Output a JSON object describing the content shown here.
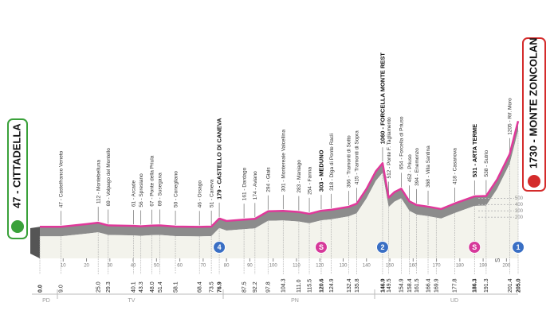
{
  "chart_data": {
    "type": "area",
    "x": [
      0,
      9,
      20,
      25,
      29.3,
      40.1,
      43.3,
      48,
      51.4,
      58.1,
      68.4,
      73.5,
      76.9,
      80,
      87.5,
      92.2,
      97.8,
      104.3,
      111,
      115.5,
      120.6,
      124.9,
      132.4,
      135.8,
      140,
      144,
      146.9,
      149.5,
      152,
      154.9,
      158.4,
      161.5,
      166.4,
      172,
      177.8,
      186.3,
      191.3,
      196,
      201.4,
      205
    ],
    "values": [
      47,
      47,
      90,
      112,
      69,
      61,
      56,
      67,
      69,
      50,
      46,
      51,
      179,
      140,
      161,
      174,
      294,
      301,
      283,
      254,
      303,
      318,
      366,
      415,
      650,
      930,
      1060,
      512,
      600,
      654,
      452,
      394,
      368,
      330,
      418,
      531,
      538,
      800,
      1205,
      1730
    ],
    "color": "#e0389a",
    "xlim": [
      0,
      205
    ],
    "ylim": [
      0,
      2150
    ],
    "xticks": [
      10,
      20,
      30,
      40,
      50,
      60,
      70,
      80,
      90,
      100,
      110,
      120,
      130,
      140,
      150,
      160,
      170,
      180,
      190,
      200
    ],
    "yticks": [
      200,
      300,
      400,
      500
    ]
  },
  "start": "47 - CITTADELLA",
  "finish": "1730 - MONTE ZONCOLAN",
  "waypoints": [
    {
      "km": {
        "value": 0,
        "label": "0.0"
      },
      "bold": true
    },
    {
      "km": {
        "value": 9,
        "label": "9.0"
      },
      "label": "47 - Castelfranco Veneto"
    },
    {
      "km": {
        "value": 25,
        "label": "25.0"
      },
      "label": "112 - Montebelluna"
    },
    {
      "km": 29.3,
      "label": "69 - Volpago del Montello"
    },
    {
      "km": 40.1,
      "label": "61 - Arcade"
    },
    {
      "km": 43.3,
      "label": "56 - Spresiano"
    },
    {
      "km": {
        "value": 48,
        "label": "48.0"
      },
      "label": "67 - Ponte della Priula"
    },
    {
      "km": 51.4,
      "label": "69 - Susegana"
    },
    {
      "km": 58.1,
      "label": "50 - Conegliano"
    },
    {
      "km": 68.4,
      "label": "46 - Orsago"
    },
    {
      "km": 73.5,
      "label": "51 - Caneva"
    },
    {
      "km": 76.9,
      "label": "179 - CASTELLO DI CANEVA",
      "bold": true
    },
    {
      "km": 87.5,
      "label": "161 - Dardago"
    },
    {
      "km": 92.2,
      "label": "174 - Aviano"
    },
    {
      "km": 97.8,
      "label": "294 - Giais"
    },
    {
      "km": 104.3,
      "label": "301 - Montereale Valcellina"
    },
    {
      "km": {
        "value": 111,
        "label": "111.0"
      },
      "label": "283 - Maniago"
    },
    {
      "km": 115.5,
      "label": "254 - Fanna"
    },
    {
      "km": 120.6,
      "label": "303 - MEDUNO",
      "bold": true
    },
    {
      "km": 124.9,
      "label": "318 - Diga di Ponte Racli"
    },
    {
      "km": 132.4,
      "label": "366 - Tramonti di Sotto"
    },
    {
      "km": 135.8,
      "label": "415 - Tramonti di Sopra"
    },
    {
      "km": 146.9,
      "label": "1060 - FORCELLA MONTE REST",
      "bold": true
    },
    {
      "km": 149.5,
      "label": "512 - Ponte F. Tagliamento"
    },
    {
      "km": 154.9,
      "label": "654 - Forcella di Priuso"
    },
    {
      "km": 158.4,
      "label": "452 - Priuso"
    },
    {
      "km": 161.5,
      "label": "394 - Enemonzo"
    },
    {
      "km": 166.4,
      "label": "368 - Villa Santina"
    },
    {
      "km": 169.9
    },
    {
      "km": 177.8,
      "label": "418 - Casanova"
    },
    {
      "km": 186.3,
      "label": "531 - ARTA TERME",
      "bold": true
    },
    {
      "km": 191.3,
      "label": "538 - Sutrio"
    },
    {
      "km": 201.4,
      "label": "1205 - Rif. Moro"
    },
    {
      "km": {
        "value": 205,
        "label": "205.0"
      },
      "bold": true
    }
  ],
  "climbs": [
    {
      "km": 76.9,
      "label": "4",
      "color": "#3a6fc4"
    },
    {
      "km": 120.6,
      "label": "S",
      "color": "#d6399a"
    },
    {
      "km": 146.9,
      "label": "2",
      "color": "#3a6fc4"
    },
    {
      "km": 186.3,
      "label": "S",
      "color": "#d6399a"
    },
    {
      "km": 205,
      "label": "1",
      "color": "#3a6fc4"
    }
  ],
  "logo": "SDS",
  "regions": [
    "PD",
    "TV",
    "PN",
    "UD"
  ]
}
